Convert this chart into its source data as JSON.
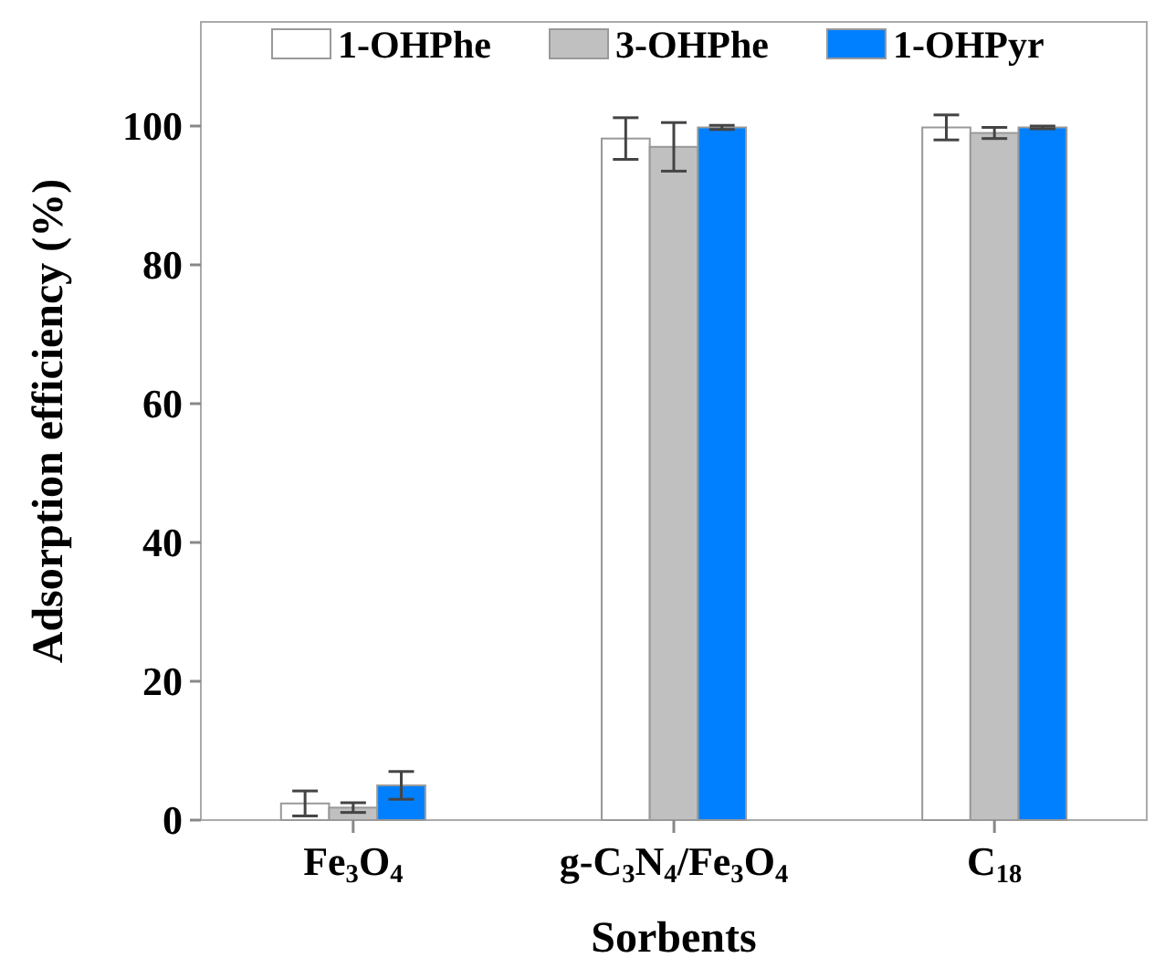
{
  "chart_data": {
    "type": "bar",
    "xlabel": "Sorbents",
    "ylabel": "Adsorption efficiency (%)",
    "categories": [
      "Fe$_{3}$O$_{4}$",
      "g-C$_{3}$N$_{4}$/Fe$_{3}$O$_{4}$",
      "C$_{18}$"
    ],
    "series": [
      {
        "name": "1-OHPhe",
        "color": "#ffffff",
        "values": [
          2.4,
          98.2,
          99.8
        ],
        "errors": [
          1.8,
          3,
          1.8
        ]
      },
      {
        "name": "3-OHPhe",
        "color": "#c0c0c0",
        "values": [
          1.8,
          97,
          99
        ],
        "errors": [
          0.7,
          3.5,
          0.8
        ]
      },
      {
        "name": "1-OHPyr",
        "color": "#0080ff",
        "values": [
          5,
          99.8,
          99.8
        ],
        "errors": [
          2,
          0.3,
          0.2
        ]
      }
    ],
    "ylim": [
      0,
      115
    ],
    "yticks": [
      0,
      20,
      40,
      60,
      80,
      100
    ],
    "grid": false,
    "legend": "top"
  }
}
